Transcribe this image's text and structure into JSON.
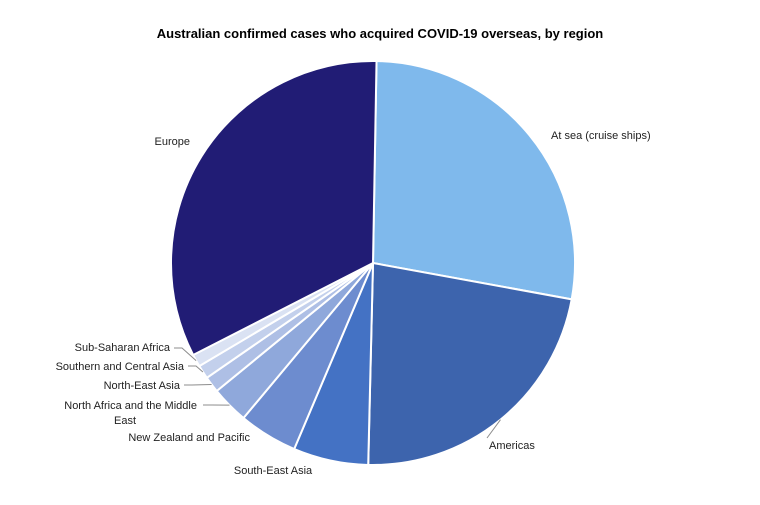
{
  "chart_data": {
    "type": "pie",
    "title": "Australian confirmed cases who acquired COVID-19 overseas, by region",
    "start_angle_deg": 1,
    "direction": "clockwise",
    "slices": [
      {
        "label": "At sea (cruise ships)",
        "value": 27.6,
        "color": "#7fb9ec"
      },
      {
        "label": "Americas",
        "value": 22.5,
        "color": "#3d64ad"
      },
      {
        "label": "South-East Asia",
        "value": 6.0,
        "color": "#4472c4"
      },
      {
        "label": "New Zealand and Pacific",
        "value": 4.7,
        "color": "#6d8ccf"
      },
      {
        "label": "North Africa and the Middle East",
        "value": 3.0,
        "color": "#8fa8db"
      },
      {
        "label": "North-East Asia",
        "value": 1.3,
        "color": "#aebfe5"
      },
      {
        "label": "Southern and Central Asia",
        "value": 1.1,
        "color": "#c3d0ec"
      },
      {
        "label": "Sub-Saharan Africa",
        "value": 1.0,
        "color": "#dae2f3"
      },
      {
        "label": "Europe",
        "value": 32.8,
        "color": "#211c75"
      }
    ]
  }
}
